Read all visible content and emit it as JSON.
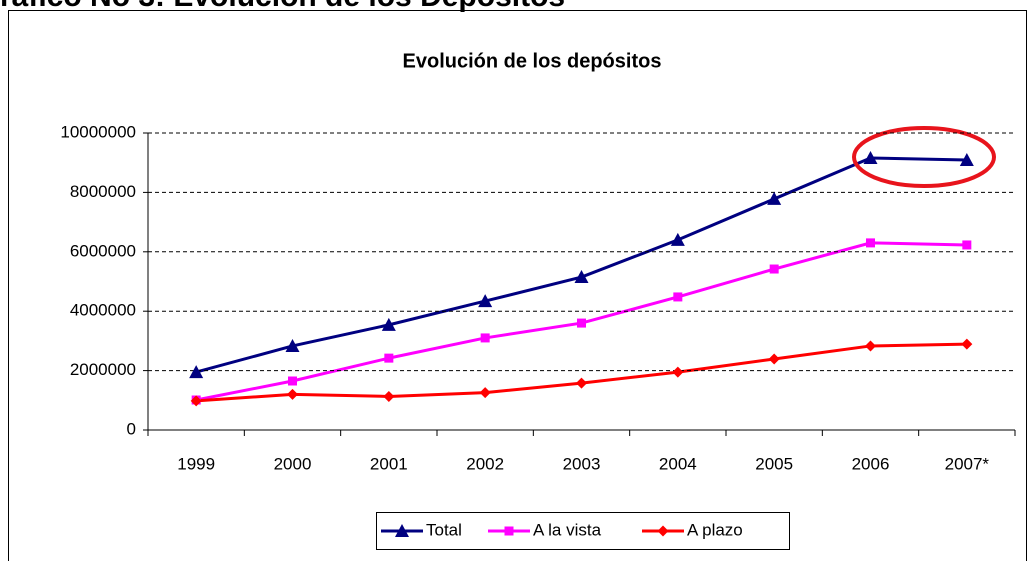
{
  "heading": "ráfico No 3: Evolución de los Depósitos",
  "chart_data": {
    "type": "line",
    "title": "Evolución de los depósitos",
    "categories": [
      "1999",
      "2000",
      "2001",
      "2002",
      "2003",
      "2004",
      "2005",
      "2006",
      "2007*"
    ],
    "series": [
      {
        "name": "Total",
        "color": "#000080",
        "marker": "triangle",
        "values": [
          1950000,
          2830000,
          3540000,
          4340000,
          5150000,
          6400000,
          7780000,
          9160000,
          9090000
        ]
      },
      {
        "name": "A la vista",
        "color": "#ff00ff",
        "marker": "square",
        "values": [
          1010000,
          1650000,
          2420000,
          3100000,
          3600000,
          4480000,
          5420000,
          6300000,
          6230000
        ]
      },
      {
        "name": "A plazo",
        "color": "#ff0000",
        "marker": "diamond",
        "values": [
          980000,
          1200000,
          1130000,
          1260000,
          1580000,
          1950000,
          2390000,
          2830000,
          2890000
        ]
      }
    ],
    "ylim": [
      0,
      10000000
    ],
    "yticks": [
      0,
      2000000,
      4000000,
      6000000,
      8000000,
      10000000
    ],
    "grid": true,
    "legend": "bottom"
  }
}
